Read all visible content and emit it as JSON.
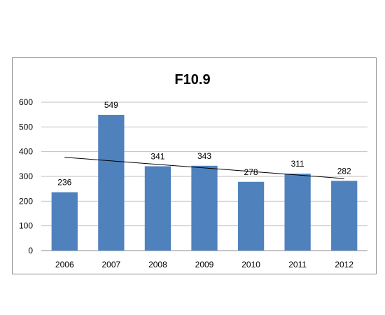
{
  "chart_data": {
    "type": "bar",
    "title": "F10.9",
    "categories": [
      "2006",
      "2007",
      "2008",
      "2009",
      "2010",
      "2011",
      "2012"
    ],
    "values": [
      236,
      549,
      341,
      343,
      278,
      311,
      282
    ],
    "ylim": [
      0,
      600
    ],
    "yticks": [
      0,
      100,
      200,
      300,
      400,
      500,
      600
    ],
    "grid": true,
    "trendline": {
      "type": "linear"
    },
    "colors": {
      "bar": "#4f81bd",
      "grid": "#bfbfbf",
      "trend": "#000000"
    }
  }
}
